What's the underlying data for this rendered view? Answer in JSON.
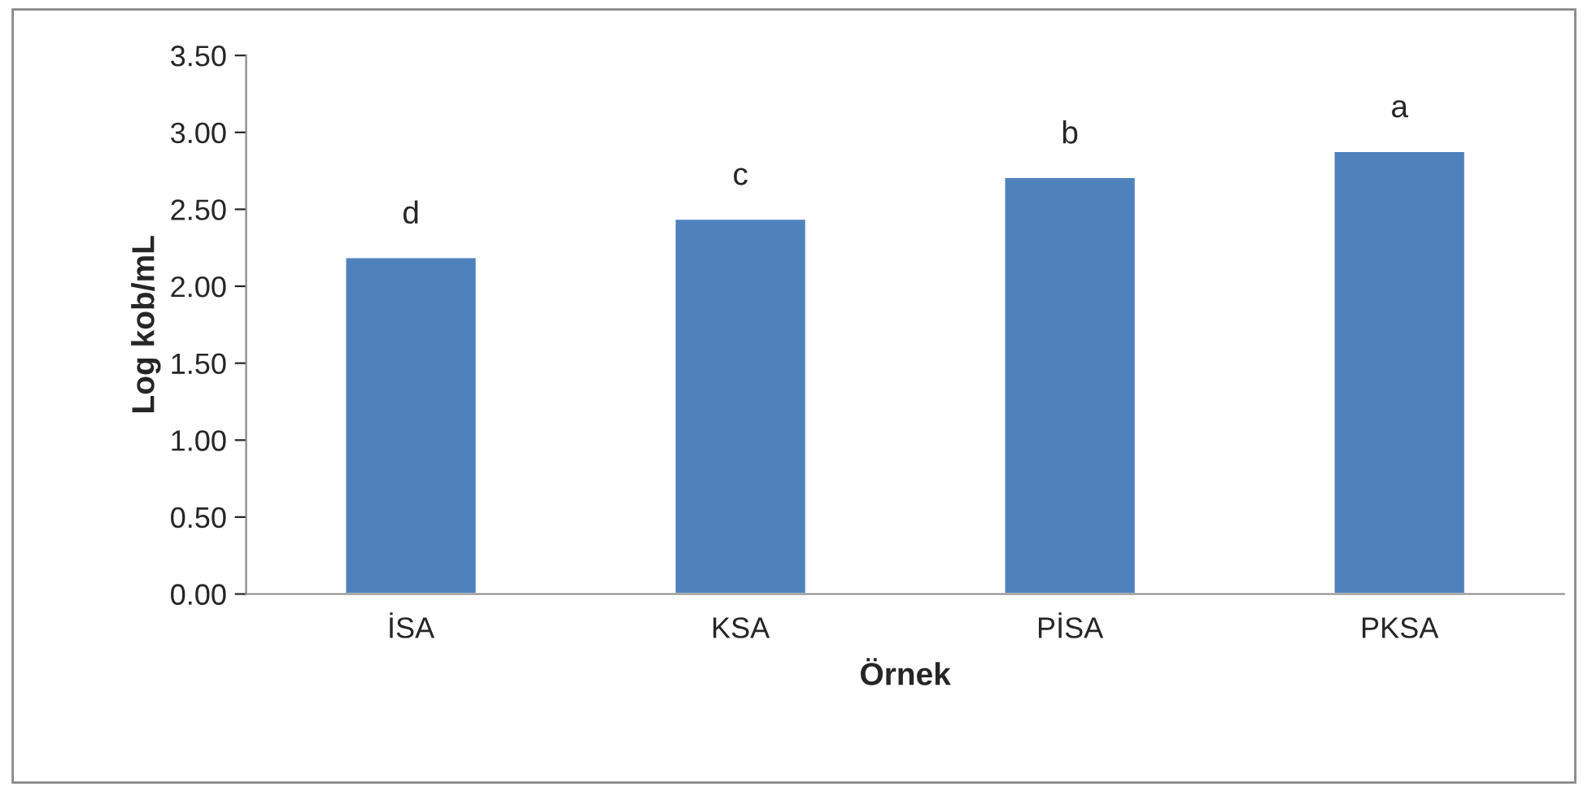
{
  "chart_data": {
    "type": "bar",
    "xlabel": "Örnek",
    "ylabel": "Log kob/mL",
    "categories": [
      "İSA",
      "KSA",
      "PİSA",
      "PKSA"
    ],
    "values": [
      2.19,
      2.44,
      2.71,
      2.88
    ],
    "color": "#4f81bd",
    "ylim": [
      0,
      3.5
    ],
    "yticks": [
      {
        "value": 0,
        "label": "0.00"
      },
      {
        "value": 0.5,
        "label": "0.50"
      },
      {
        "value": 1,
        "label": "1.00"
      },
      {
        "value": 1.5,
        "label": "1.50"
      },
      {
        "value": 2,
        "label": "2.00"
      },
      {
        "value": 2.5,
        "label": "2.50"
      },
      {
        "value": 3,
        "label": "3.00"
      },
      {
        "value": 3.5,
        "label": "3.50"
      }
    ],
    "annotations": [
      {
        "text": "d",
        "x": "İSA",
        "y": 2.19
      },
      {
        "text": "c",
        "x": "KSA",
        "y": 2.44
      },
      {
        "text": "b",
        "x": "PİSA",
        "y": 2.71
      },
      {
        "text": "a",
        "x": "PKSA",
        "y": 2.88
      }
    ],
    "grid": false,
    "legend": false
  }
}
